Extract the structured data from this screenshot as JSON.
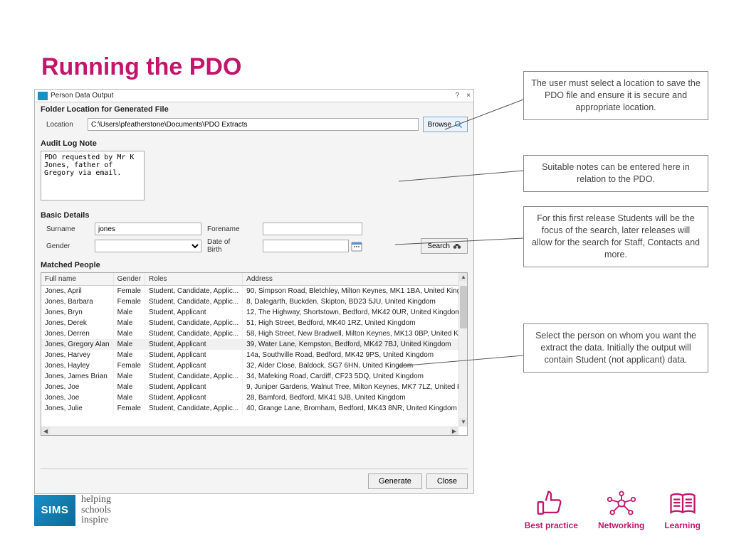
{
  "colors": {
    "accent": "#c4156d",
    "border": "#888888",
    "win_border": "#b8b8b8",
    "field_border": "#a8a8a8"
  },
  "title": "Running the PDO",
  "window": {
    "title": "Person Data Output",
    "help": "?",
    "close": "×",
    "folder_section": "Folder Location for Generated File",
    "location_label": "Location",
    "location_value": "C:\\Users\\pfeatherstone\\Documents\\PDO Extracts",
    "browse_label": "Browse",
    "audit_section": "Audit Log Note",
    "audit_value": "PDO requested by Mr K Jones, father of Gregory via email.",
    "basic_section": "Basic Details",
    "surname_label": "Surname",
    "surname_value": "jones",
    "forename_label": "Forename",
    "forename_value": "",
    "gender_label": "Gender",
    "gender_value": "",
    "dob_label": "Date of Birth",
    "dob_value": "",
    "search_label": "Search",
    "matched_section": "Matched People",
    "columns": [
      "Full name",
      "Gender",
      "Roles",
      "Address"
    ],
    "rows": [
      [
        "Jones, April",
        "Female",
        "Student, Candidate, Applic...",
        "90, Simpson Road, Bletchley, Milton Keynes, MK1 1BA, United King"
      ],
      [
        "Jones, Barbara",
        "Female",
        "Student, Candidate, Applic...",
        "8, Dalegarth, Buckden, Skipton, BD23 5JU, United Kingdom"
      ],
      [
        "Jones, Bryn",
        "Male",
        "Student, Applicant",
        "12, The Highway, Shortstown, Bedford, MK42 0UR, United Kingdom"
      ],
      [
        "Jones, Derek",
        "Male",
        "Student, Candidate, Applic...",
        "51, High Street, Bedford, MK40 1RZ, United Kingdom"
      ],
      [
        "Jones, Derren",
        "Male",
        "Student, Candidate, Applic...",
        "58, High Street, New Bradwell, Milton Keynes, MK13 0BP, United Ki"
      ],
      [
        "Jones, Gregory Alan",
        "Male",
        "Student, Applicant",
        "39, Water Lane, Kempston, Bedford, MK42 7BJ, United Kingdom"
      ],
      [
        "Jones, Harvey",
        "Male",
        "Student, Applicant",
        "14a, Southville Road, Bedford, MK42 9PS, United Kingdom"
      ],
      [
        "Jones, Hayley",
        "Female",
        "Student, Applicant",
        "32, Alder Close, Baldock, SG7 6HN, United Kingdom"
      ],
      [
        "Jones, James Brian",
        "Male",
        "Student, Candidate, Applic...",
        "34, Mafeking Road, Cardiff, CF23 5DQ, United Kingdom"
      ],
      [
        "Jones, Joe",
        "Male",
        "Student, Applicant",
        "9, Juniper Gardens, Walnut Tree, Milton Keynes, MK7 7LZ, United K"
      ],
      [
        "Jones, Joe",
        "Male",
        "Student, Applicant",
        "28, Bamford, Bedford, MK41 9JB, United Kingdom"
      ],
      [
        "Jones, Julie",
        "Female",
        "Student, Candidate, Applic...",
        "40, Grange Lane, Bromham, Bedford, MK43 8NR, United Kingdom"
      ]
    ],
    "selected_row": 5,
    "generate_label": "Generate",
    "close_label": "Close"
  },
  "callouts": {
    "c1": "The user must select a location to save the PDO file and ensure it is secure and appropriate location.",
    "c2": "Suitable notes can be entered here in relation to the PDO.",
    "c3": "For this first release Students will be the focus of the search, later releases will allow for the search for Staff, Contacts and more.",
    "c4": "Select the person on whom you want the extract the data. Initially the output will contain Student (not applicant) data."
  },
  "branding": {
    "sims": "SIMS",
    "tagline1": "helping",
    "tagline2": "schools",
    "tagline3": "inspire"
  },
  "footer_icons": {
    "a": "Best practice",
    "b": "Networking",
    "c": "Learning"
  }
}
